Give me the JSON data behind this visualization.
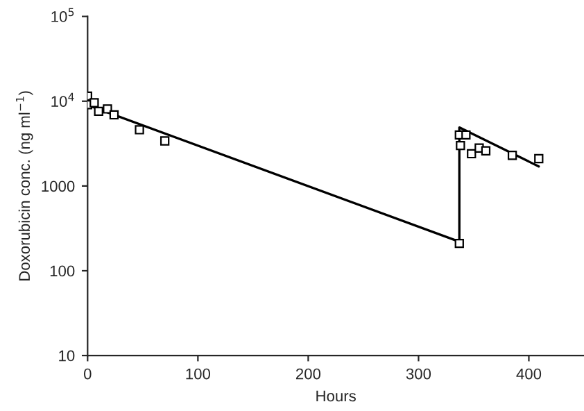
{
  "chart_data": {
    "type": "scatter",
    "xlabel": "Hours",
    "ylabel": "Doxorubicin conc. (ng ml$^{−1}$)",
    "log": "y",
    "xlim": [
      0,
      450
    ],
    "xticks": [
      0,
      100,
      200,
      300,
      400
    ],
    "ylim": [
      10,
      100000
    ],
    "yticks": [
      10,
      100,
      1000,
      {
        "value": 10000,
        "label": "10$^{4}$"
      },
      {
        "value": 100000,
        "label": "10$^{5}$"
      }
    ],
    "grid": false,
    "legend": false,
    "series": [
      {
        "color": "#000000",
        "marker": "square",
        "x": [
          0,
          0,
          6,
          10,
          18,
          24,
          47,
          70,
          337,
          337,
          343,
          338,
          348,
          355,
          361,
          385,
          409
        ],
        "values": [
          11500,
          9100,
          9600,
          7600,
          8100,
          6900,
          4600,
          3400,
          210,
          4000,
          4000,
          3000,
          2400,
          2800,
          2600,
          2300,
          2100
        ]
      },
      {
        "type": "line",
        "color": "#000000",
        "marker": "none",
        "line_style": "solid",
        "x": [
          0,
          337,
          337,
          409
        ],
        "values": [
          9000,
          220,
          4900,
          1700
        ]
      }
    ]
  }
}
